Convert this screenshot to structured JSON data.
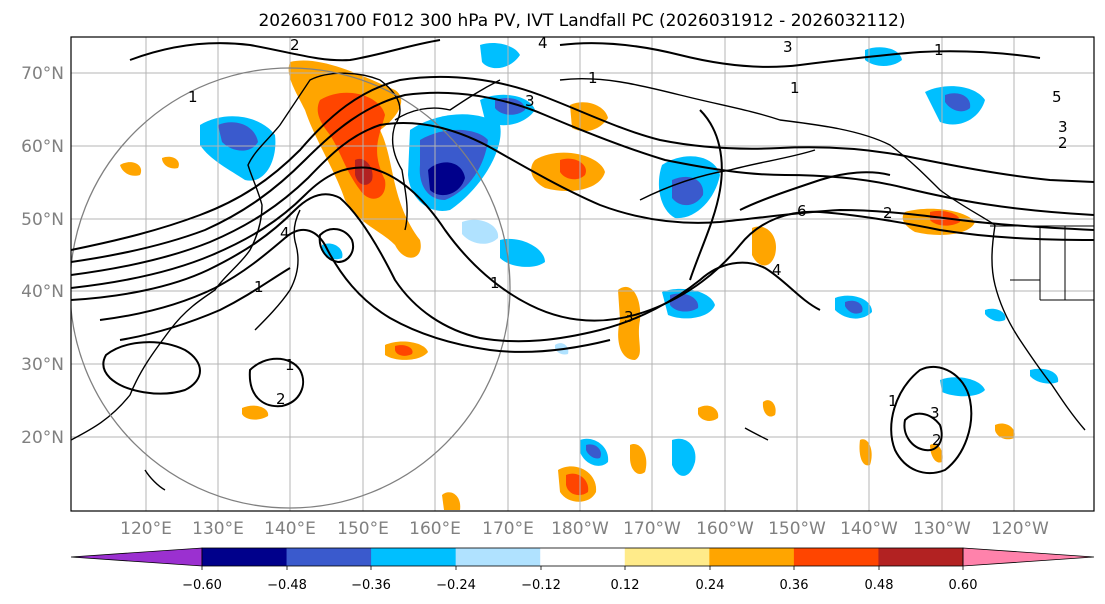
{
  "title": "2026031700 F012 300 hPa PV, IVT Landfall PC (2026031912 - 2026032112)",
  "lat_labels": [
    "70°N",
    "60°N",
    "50°N",
    "40°N",
    "30°N",
    "20°N"
  ],
  "lon_labels": [
    "120°E",
    "130°E",
    "140°E",
    "150°E",
    "160°E",
    "170°E",
    "180°W",
    "170°W",
    "160°W",
    "150°W",
    "140°W",
    "130°W",
    "120°W"
  ],
  "contour_labels": [
    "4",
    "3",
    "1",
    "1",
    "1",
    "3",
    "2",
    "6",
    "2",
    "1",
    "1",
    "3",
    "1",
    "2",
    "1",
    "3",
    "2",
    "1",
    "5",
    "3",
    "2",
    "4",
    "4"
  ],
  "colorbar": {
    "ticks": [
      "−0.60",
      "−0.48",
      "−0.36",
      "−0.24",
      "−0.12",
      "0.12",
      "0.24",
      "0.36",
      "0.48",
      "0.60"
    ],
    "colors": [
      "#9b30d0",
      "#00008b",
      "#3a5acd",
      "#00bfff",
      "#b0e2ff",
      "#ffffff",
      "#ffeb8a",
      "#ffa500",
      "#ff4500",
      "#b22222",
      "#ff82ab"
    ]
  }
}
